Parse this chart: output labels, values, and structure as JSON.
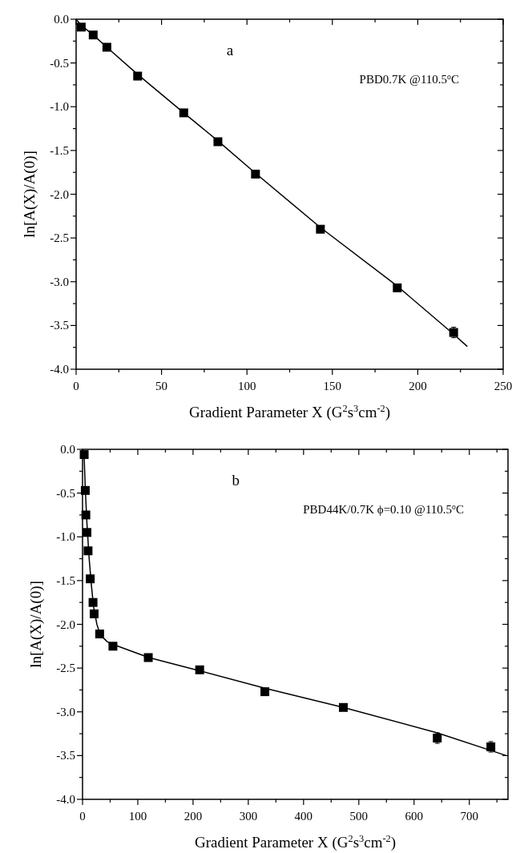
{
  "chart_data": [
    {
      "type": "scatter",
      "xlabel": "Gradient Parameter X (G$^{2}$s$^{3}$cm$^{-2}$)",
      "ylabel": "ln[A(X)/A(0)]",
      "annotations": [
        "a",
        "PBD0.7K @110.5$^{o}$C"
      ],
      "xlim": [
        0,
        250
      ],
      "ylim": [
        -4,
        0
      ],
      "xticks": [
        0,
        {
          "value": 25,
          "label": null
        },
        50,
        {
          "value": 75,
          "label": null
        },
        100,
        {
          "value": 125,
          "label": null
        },
        150,
        {
          "value": 175,
          "label": null
        },
        200,
        {
          "value": 225,
          "label": null
        },
        250
      ],
      "yticks": [
        {
          "value": 0,
          "label": "0.0"
        },
        {
          "value": -0.25,
          "label": null
        },
        {
          "value": -0.5,
          "label": "-0.5"
        },
        {
          "value": -0.75,
          "label": null
        },
        {
          "value": -1,
          "label": "-1.0"
        },
        {
          "value": -1.25,
          "label": null
        },
        {
          "value": -1.5,
          "label": "-1.5"
        },
        {
          "value": -1.75,
          "label": null
        },
        {
          "value": -2,
          "label": "-2.0"
        },
        {
          "value": -2.25,
          "label": null
        },
        {
          "value": -2.5,
          "label": "-2.5"
        },
        {
          "value": -2.75,
          "label": null
        },
        {
          "value": -3,
          "label": "-3.0"
        },
        {
          "value": -3.25,
          "label": null
        },
        {
          "value": -3.5,
          "label": "-3.5"
        },
        {
          "value": -3.75,
          "label": null
        },
        {
          "value": -4,
          "label": "-4.0"
        }
      ],
      "grid": false,
      "marker": "square",
      "series": [
        {
          "color": "#000000",
          "x": [
            3,
            10,
            18,
            36,
            63,
            83,
            105,
            143,
            188,
            221
          ],
          "values": [
            -0.09,
            -0.18,
            -0.32,
            -0.65,
            -1.07,
            -1.4,
            -1.77,
            -2.4,
            -3.07,
            -3.58
          ],
          "errors": [
            null,
            null,
            null,
            null,
            null,
            null,
            null,
            null,
            null,
            0.06
          ]
        },
        {
          "type": "line",
          "color": "#000000",
          "line_style": "solid",
          "marker": "none",
          "x": [
            0,
            3,
            10,
            18,
            36,
            63,
            83,
            105,
            143,
            188,
            221,
            229
          ],
          "values": [
            0,
            -0.07,
            -0.18,
            -0.32,
            -0.63,
            -1.07,
            -1.39,
            -1.76,
            -2.38,
            -3.05,
            -3.6,
            -3.74
          ]
        }
      ]
    },
    {
      "type": "scatter",
      "xlabel": "Gradient Parameter X (G$^{2}$s$^{3}$cm$^{-2}$)",
      "ylabel": "ln[A(X)/A(0)]",
      "annotations": [
        "b",
        "PBD44K/0.7K ϕ=0.10 @110.5$^{o}$C"
      ],
      "xlim": [
        0,
        770
      ],
      "ylim": [
        -4,
        0
      ],
      "xticks": [
        0,
        {
          "value": 50,
          "label": null
        },
        100,
        {
          "value": 150,
          "label": null
        },
        200,
        {
          "value": 250,
          "label": null
        },
        300,
        {
          "value": 350,
          "label": null
        },
        400,
        {
          "value": 450,
          "label": null
        },
        500,
        {
          "value": 550,
          "label": null
        },
        600,
        {
          "value": 650,
          "label": null
        },
        700,
        {
          "value": 750,
          "label": null
        }
      ],
      "yticks": [
        {
          "value": 0,
          "label": "0.0"
        },
        {
          "value": -0.25,
          "label": null
        },
        {
          "value": -0.5,
          "label": "-0.5"
        },
        {
          "value": -0.75,
          "label": null
        },
        {
          "value": -1,
          "label": "-1.0"
        },
        {
          "value": -1.25,
          "label": null
        },
        {
          "value": -1.5,
          "label": "-1.5"
        },
        {
          "value": -1.75,
          "label": null
        },
        {
          "value": -2,
          "label": "-2.0"
        },
        {
          "value": -2.25,
          "label": null
        },
        {
          "value": -2.5,
          "label": "-2.5"
        },
        {
          "value": -2.75,
          "label": null
        },
        {
          "value": -3,
          "label": "-3.0"
        },
        {
          "value": -3.25,
          "label": null
        },
        {
          "value": -3.5,
          "label": "-3.5"
        },
        {
          "value": -3.75,
          "label": null
        },
        {
          "value": -4,
          "label": "-4.0"
        }
      ],
      "grid": false,
      "marker": "square",
      "series": [
        {
          "color": "#000000",
          "x": [
            3,
            5,
            6,
            8,
            10,
            14,
            19,
            21,
            31,
            55,
            119,
            212,
            330,
            472,
            642,
            739
          ],
          "values": [
            -0.06,
            -0.47,
            -0.75,
            -0.95,
            -1.16,
            -1.48,
            -1.75,
            -1.88,
            -2.11,
            -2.25,
            -2.38,
            -2.52,
            -2.77,
            -2.95,
            -3.3,
            -3.4
          ],
          "errors": [
            null,
            null,
            null,
            null,
            null,
            null,
            null,
            null,
            null,
            null,
            null,
            null,
            null,
            null,
            0.06,
            0.06
          ]
        },
        {
          "type": "line",
          "color": "#000000",
          "line_style": "solid",
          "marker": "none",
          "x": [
            0,
            3,
            5,
            8,
            12,
            16,
            20,
            26,
            32,
            45,
            60,
            120,
            212,
            330,
            472,
            642,
            767
          ],
          "values": [
            0,
            -0.1,
            -0.45,
            -0.85,
            -1.25,
            -1.55,
            -1.8,
            -2.0,
            -2.12,
            -2.2,
            -2.24,
            -2.38,
            -2.53,
            -2.73,
            -2.95,
            -3.24,
            -3.5
          ]
        }
      ]
    }
  ]
}
